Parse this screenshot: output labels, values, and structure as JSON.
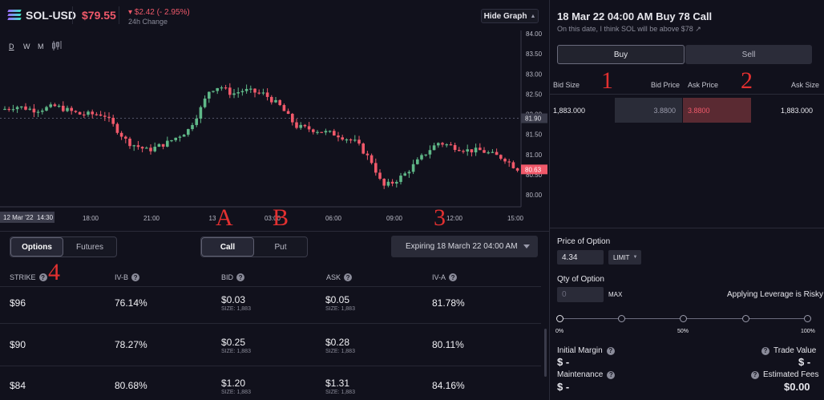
{
  "header": {
    "ticker": "SOL-USD",
    "price": "$79.55",
    "change": "▾ $2.42 (- 2.95%)",
    "change_label": "24h Change",
    "hide_graph": "Hide Graph"
  },
  "chart": {
    "timeframes": [
      "D",
      "W",
      "M"
    ],
    "y_ticks": [
      "84.00",
      "83.50",
      "83.00",
      "82.50",
      "82.00",
      "81.50",
      "81.00",
      "80.50",
      "80.00"
    ],
    "x_ticks": [
      "18:00",
      "21:00",
      "13",
      "03:00",
      "06:00",
      "09:00",
      "12:00",
      "15:00"
    ],
    "x_start": "12 Mar '22",
    "x_start_time": "14:30",
    "crosshair_price": "81.90",
    "last_price": "80.63",
    "colors": {
      "up": "#5fb888",
      "down": "#f0596a"
    }
  },
  "annotations": [
    "1",
    "2",
    "A",
    "B",
    "3",
    "4"
  ],
  "bottom": {
    "tabs": [
      "Options",
      "Futures"
    ],
    "type_tabs": [
      "Call",
      "Put"
    ],
    "expiry": "Expiring 18 March 22 04:00 AM",
    "columns": [
      "STRIKE",
      "IV-B",
      "BID",
      "ASK",
      "IV-A"
    ],
    "rows": [
      {
        "strike": "$96",
        "ivb": "76.14%",
        "bid": "$0.03",
        "bid_size": "SIZE: 1,883",
        "ask": "$0.05",
        "ask_size": "SIZE: 1,883",
        "iva": "81.78%"
      },
      {
        "strike": "$90",
        "ivb": "78.27%",
        "bid": "$0.25",
        "bid_size": "SIZE: 1,883",
        "ask": "$0.28",
        "ask_size": "SIZE: 1,883",
        "iva": "80.11%"
      },
      {
        "strike": "$84",
        "ivb": "80.68%",
        "bid": "$1.20",
        "bid_size": "SIZE: 1,883",
        "ask": "$1.31",
        "ask_size": "SIZE: 1,883",
        "iva": "84.16%"
      }
    ]
  },
  "panel": {
    "title": "18 Mar 22 04:00 AM Buy 78 Call",
    "subtitle": "On this date, I think SOL will be above $78",
    "buy": "Buy",
    "sell": "Sell",
    "ob_headers": [
      "Bid Size",
      "Bid Price",
      "Ask Price",
      "Ask Size"
    ],
    "bid_size": "1,883.000",
    "bid_price": "3.8800",
    "ask_price": "3.8800",
    "ask_size": "1,883.000",
    "price_label": "Price of Option",
    "price_value": "4.34",
    "order_type": "LIMIT",
    "qty_label": "Qty of Option",
    "qty_placeholder": "0",
    "max": "MAX",
    "leverage_warning": "Applying Leverage is Risky",
    "slider_labels": [
      "0%",
      "50%",
      "100%"
    ],
    "initial_margin": "Initial Margin",
    "trade_value": "Trade Value",
    "maintenance": "Maintenance",
    "fees": "Estimated Fees",
    "im_value": "$ -",
    "tv_value": "$ -",
    "mt_value": "$ -",
    "fee_value": "$0.00"
  }
}
